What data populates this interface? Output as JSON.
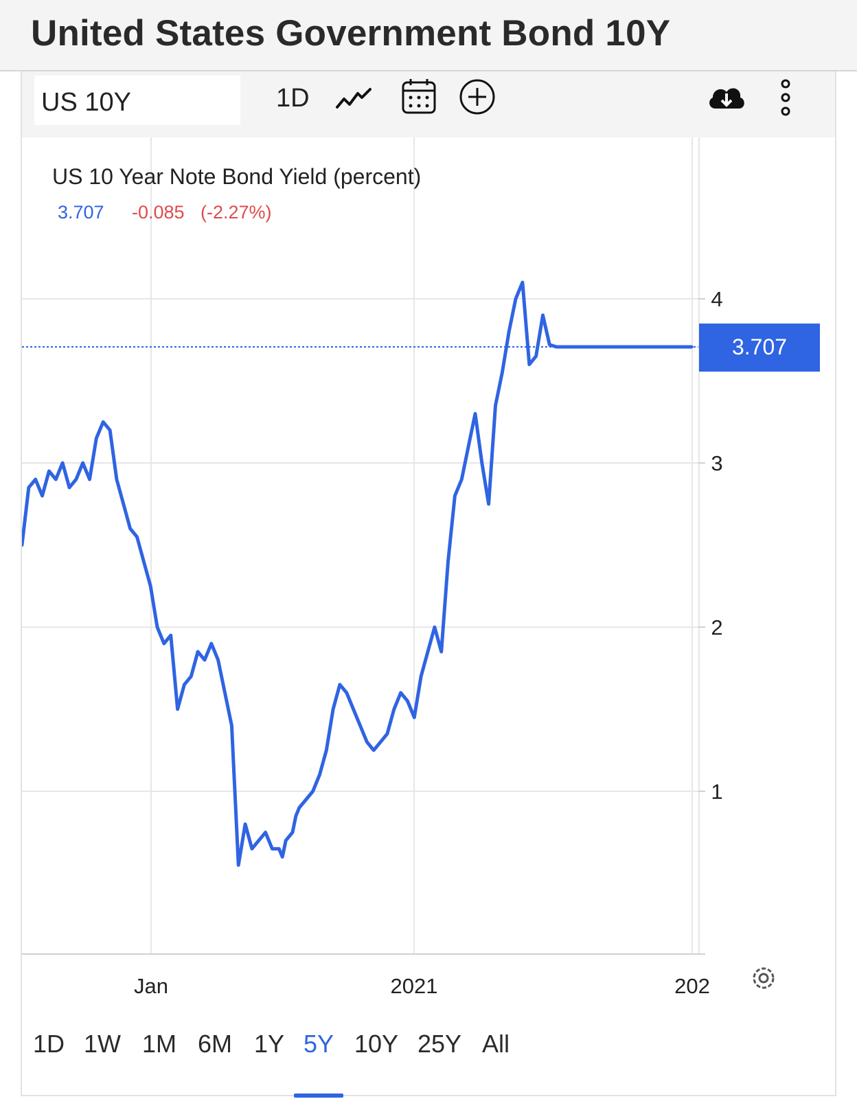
{
  "page": {
    "title": "United States Government Bond 10Y"
  },
  "toolbar": {
    "symbol": "US 10Y",
    "interval": "1D",
    "icons": [
      "line-chart-icon",
      "calendar-icon",
      "plus-circle-icon",
      "cloud-download-icon",
      "more-vertical-icon"
    ]
  },
  "legend": {
    "title": "US 10 Year Note Bond Yield (percent)",
    "last": "3.707",
    "change": "-0.085",
    "change_pct": "(-2.27%)"
  },
  "price_tag": "3.707",
  "colors": {
    "line": "#2f64e2",
    "accent": "#2f64e2",
    "negative": "#e04b4b",
    "grid": "#e6e6e6"
  },
  "range": {
    "items": [
      "1D",
      "1W",
      "1M",
      "6M",
      "1Y",
      "5Y",
      "10Y",
      "25Y",
      "All"
    ],
    "active": "5Y"
  },
  "chart_data": {
    "type": "line",
    "y_ticks": [
      "1",
      "2",
      "3",
      "4"
    ],
    "x_ticks": [
      "Jan",
      "2021",
      "202"
    ],
    "ylim": [
      0,
      5
    ],
    "last_value": 3.707,
    "grid": true,
    "series": [
      {
        "x": [
          0,
          0.01,
          0.02,
          0.03,
          0.04,
          0.05,
          0.06,
          0.07,
          0.08,
          0.09,
          0.1,
          0.11,
          0.12,
          0.13,
          0.14,
          0.15,
          0.16,
          0.17,
          0.18,
          0.19,
          0.2,
          0.21,
          0.22,
          0.23,
          0.24,
          0.25,
          0.26,
          0.27,
          0.28,
          0.29,
          0.3,
          0.31,
          0.32,
          0.33,
          0.34,
          0.35,
          0.36,
          0.37,
          0.38,
          0.385,
          0.39,
          0.4,
          0.405,
          0.41,
          0.42,
          0.43,
          0.44,
          0.45,
          0.46,
          0.47,
          0.48,
          0.49,
          0.5,
          0.51,
          0.52,
          0.53,
          0.54,
          0.55,
          0.56,
          0.57,
          0.58,
          0.59,
          0.6,
          0.61,
          0.62,
          0.63,
          0.64,
          0.65,
          0.66,
          0.67,
          0.68,
          0.69,
          0.7,
          0.71,
          0.72,
          0.73,
          0.74,
          0.75,
          0.76,
          0.77,
          0.78,
          0.79,
          0.8,
          0.81,
          0.82,
          0.83,
          0.84,
          0.85,
          0.86,
          0.87,
          0.88,
          0.89,
          0.9,
          0.91,
          0.92,
          0.93,
          0.94,
          0.95,
          0.96,
          0.97,
          0.98,
          0.99
        ],
        "values": [
          2.5,
          2.85,
          2.9,
          2.8,
          2.95,
          2.9,
          3.0,
          2.85,
          2.9,
          3.0,
          2.9,
          3.15,
          3.25,
          3.2,
          2.9,
          2.75,
          2.6,
          2.55,
          2.4,
          2.25,
          2.0,
          1.9,
          1.95,
          1.5,
          1.65,
          1.7,
          1.85,
          1.8,
          1.9,
          1.8,
          1.6,
          1.4,
          0.55,
          0.8,
          0.65,
          0.7,
          0.75,
          0.65,
          0.65,
          0.6,
          0.7,
          0.75,
          0.85,
          0.9,
          0.95,
          1.0,
          1.1,
          1.25,
          1.5,
          1.65,
          1.6,
          1.5,
          1.4,
          1.3,
          1.25,
          1.3,
          1.35,
          1.5,
          1.6,
          1.55,
          1.45,
          1.7,
          1.85,
          2.0,
          1.85,
          2.4,
          2.8,
          2.9,
          3.1,
          3.3,
          3.0,
          2.75,
          3.35,
          3.55,
          3.8,
          4.0,
          4.1,
          3.6,
          3.65,
          3.9,
          3.72,
          3.707,
          3.707,
          3.707,
          3.707,
          3.707,
          3.707,
          3.707,
          3.707,
          3.707,
          3.707,
          3.707,
          3.707,
          3.707,
          3.707,
          3.707,
          3.707,
          3.707,
          3.707,
          3.707,
          3.707,
          3.707
        ]
      }
    ]
  }
}
